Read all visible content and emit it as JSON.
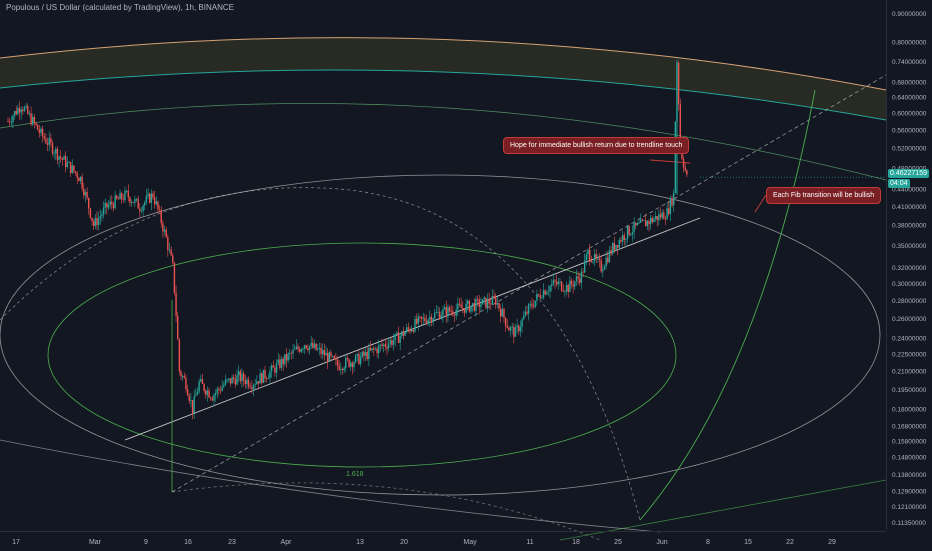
{
  "header": {
    "title": "Populous / US Dollar (calculated by TradingView), 1h, BINANCE"
  },
  "annotations": {
    "note_1": "Hope for immediate bullish return due to trendline touch",
    "note_2": "Each Fib transition will be bullish",
    "fib_label": "1.618"
  },
  "last_price": {
    "value": "0.46227159",
    "timer": "04:04"
  },
  "colors": {
    "background": "#131722",
    "up": "#26a69a",
    "down": "#ef5350",
    "fib_green": "#4caf50",
    "fib_teal": "#26a69a",
    "fib_light": "#c8c8c8",
    "fib_orange": "#d4a373",
    "note_bg": "#7a1f24"
  },
  "chart_data": {
    "type": "candlestick",
    "symbol": "Populous / US Dollar",
    "interval": "1h",
    "exchange": "BINANCE",
    "y_scale": "log",
    "ylim": [
      0.11,
      0.95
    ],
    "y_ticks": [
      "0.90000000",
      "0.80000000",
      "0.74000000",
      "0.68000000",
      "0.64000000",
      "0.60000000",
      "0.56000000",
      "0.52000000",
      "0.48000000",
      "0.44000000",
      "0.41000000",
      "0.38000000",
      "0.35000000",
      "0.32000000",
      "0.30000000",
      "0.28000000",
      "0.26000000",
      "0.24000000",
      "0.22500000",
      "0.21000000",
      "0.19500000",
      "0.18000000",
      "0.16800000",
      "0.15800000",
      "0.14800000",
      "0.13800000",
      "0.12900000",
      "0.12100000",
      "0.11350000"
    ],
    "x_ticks": [
      "17",
      "Mar",
      "9",
      "16",
      "23",
      "Apr",
      "13",
      "20",
      "May",
      "11",
      "18",
      "25",
      "Jun",
      "8",
      "15",
      "22",
      "29"
    ],
    "price_path": [
      {
        "d": 0,
        "p": 0.58
      },
      {
        "d": 2,
        "p": 0.62
      },
      {
        "d": 5,
        "p": 0.55
      },
      {
        "d": 8,
        "p": 0.5
      },
      {
        "d": 11,
        "p": 0.46
      },
      {
        "d": 13,
        "p": 0.38
      },
      {
        "d": 15,
        "p": 0.41
      },
      {
        "d": 18,
        "p": 0.43
      },
      {
        "d": 20,
        "p": 0.41
      },
      {
        "d": 22,
        "p": 0.43
      },
      {
        "d": 24,
        "p": 0.36
      },
      {
        "d": 25,
        "p": 0.32
      },
      {
        "d": 26,
        "p": 0.21
      },
      {
        "d": 27,
        "p": 0.2
      },
      {
        "d": 28,
        "p": 0.18
      },
      {
        "d": 29,
        "p": 0.2
      },
      {
        "d": 31,
        "p": 0.19
      },
      {
        "d": 33,
        "p": 0.2
      },
      {
        "d": 35,
        "p": 0.205
      },
      {
        "d": 37,
        "p": 0.2
      },
      {
        "d": 40,
        "p": 0.21
      },
      {
        "d": 42,
        "p": 0.22
      },
      {
        "d": 45,
        "p": 0.235
      },
      {
        "d": 48,
        "p": 0.225
      },
      {
        "d": 50,
        "p": 0.215
      },
      {
        "d": 53,
        "p": 0.22
      },
      {
        "d": 56,
        "p": 0.23
      },
      {
        "d": 59,
        "p": 0.24
      },
      {
        "d": 62,
        "p": 0.255
      },
      {
        "d": 65,
        "p": 0.265
      },
      {
        "d": 68,
        "p": 0.27
      },
      {
        "d": 71,
        "p": 0.275
      },
      {
        "d": 74,
        "p": 0.28
      },
      {
        "d": 76,
        "p": 0.25
      },
      {
        "d": 77,
        "p": 0.245
      },
      {
        "d": 79,
        "p": 0.27
      },
      {
        "d": 81,
        "p": 0.29
      },
      {
        "d": 83,
        "p": 0.3
      },
      {
        "d": 85,
        "p": 0.295
      },
      {
        "d": 87,
        "p": 0.31
      },
      {
        "d": 88,
        "p": 0.34
      },
      {
        "d": 90,
        "p": 0.32
      },
      {
        "d": 92,
        "p": 0.35
      },
      {
        "d": 94,
        "p": 0.37
      },
      {
        "d": 96,
        "p": 0.38
      },
      {
        "d": 98,
        "p": 0.39
      },
      {
        "d": 100,
        "p": 0.4
      },
      {
        "d": 101,
        "p": 0.43
      },
      {
        "d": 101.5,
        "p": 0.74
      },
      {
        "d": 102,
        "p": 0.52
      },
      {
        "d": 103,
        "p": 0.46
      }
    ]
  }
}
